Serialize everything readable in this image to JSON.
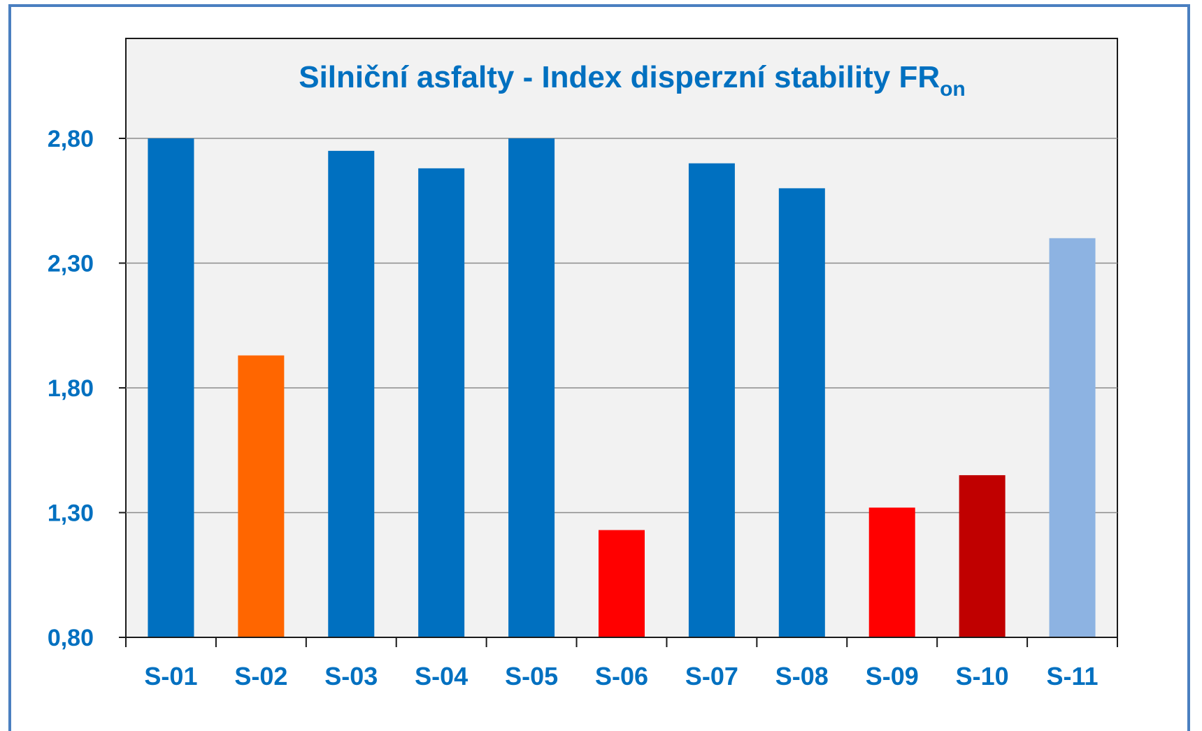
{
  "chart_data": {
    "type": "bar",
    "title": {
      "main": "Silniční asfalty - Index disperzní stability FR",
      "subscript": "on"
    },
    "categories": [
      "S-01",
      "S-02",
      "S-03",
      "S-04",
      "S-05",
      "S-06",
      "S-07",
      "S-08",
      "S-09",
      "S-10",
      "S-11"
    ],
    "values": [
      2.8,
      1.93,
      2.75,
      2.68,
      2.8,
      1.23,
      2.7,
      2.6,
      1.32,
      1.45,
      2.4
    ],
    "bar_colors": [
      "#0070c0",
      "#ff6600",
      "#0070c0",
      "#0070c0",
      "#0070c0",
      "#ff0000",
      "#0070c0",
      "#0070c0",
      "#ff0000",
      "#c00000",
      "#8db3e2"
    ],
    "y_ticks": [
      "2,80",
      "2,30",
      "1,80",
      "1,30",
      "0,80"
    ],
    "y_tick_values": [
      2.8,
      2.3,
      1.8,
      1.3,
      0.8
    ],
    "ylim": [
      0.8,
      2.8
    ],
    "xlabel": "",
    "ylabel": "",
    "grid": true,
    "legend": "none",
    "colors": {
      "plot_background": "#f2f2f2",
      "gridline": "#8c8c8c",
      "label_text": "#0070c0",
      "frame": "#4a7fc0"
    }
  }
}
